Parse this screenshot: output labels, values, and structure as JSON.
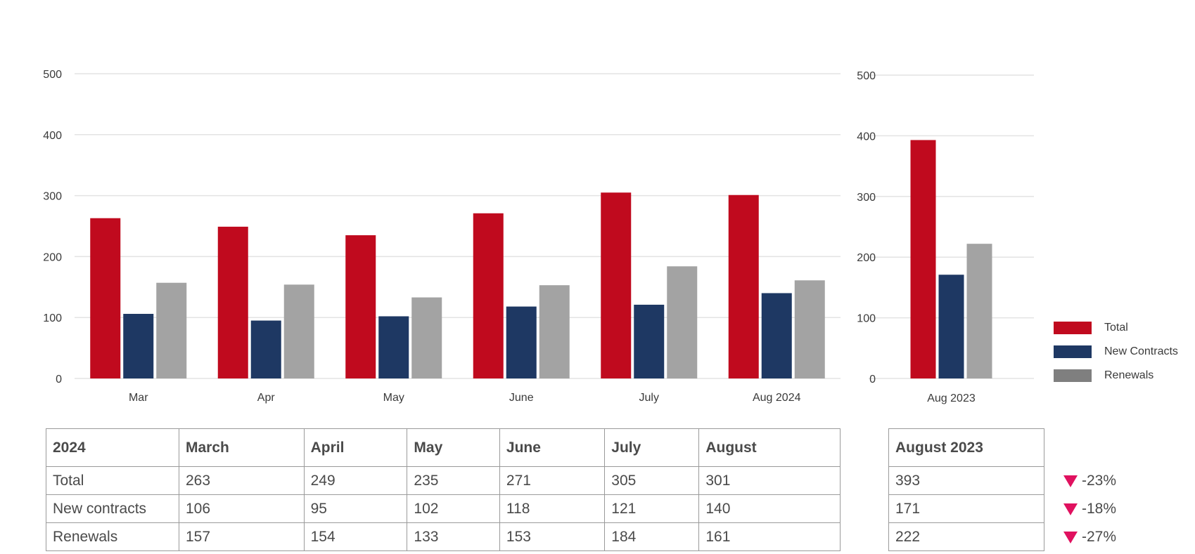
{
  "colors": {
    "total": "#c00a1e",
    "new_contracts": "#1e3863",
    "renewals": "#a3a3a3",
    "legend_renewals": "#7f7f7f",
    "down": "#e0115f"
  },
  "chart_data": [
    {
      "type": "bar",
      "categories": [
        "Mar",
        "Apr",
        "May",
        "June",
        "July",
        "Aug 2024"
      ],
      "series": [
        {
          "name": "Total",
          "values": [
            263,
            249,
            235,
            271,
            305,
            301
          ]
        },
        {
          "name": "New Contracts",
          "values": [
            106,
            95,
            102,
            118,
            121,
            140
          ]
        },
        {
          "name": "Renewals",
          "values": [
            157,
            154,
            133,
            153,
            184,
            161
          ]
        }
      ],
      "yticks": [
        0,
        100,
        200,
        300,
        400,
        500
      ],
      "ylim": [
        0,
        500
      ],
      "grid": true
    },
    {
      "type": "bar",
      "categories": [
        "Aug 2023"
      ],
      "series": [
        {
          "name": "Total",
          "values": [
            393
          ]
        },
        {
          "name": "New Contracts",
          "values": [
            171
          ]
        },
        {
          "name": "Renewals",
          "values": [
            222
          ]
        }
      ],
      "yticks": [
        0,
        100,
        200,
        300,
        400,
        500
      ],
      "ylim": [
        0,
        500
      ],
      "grid": true,
      "legend": "right"
    }
  ],
  "legend": [
    "Total",
    "New Contracts",
    "Renewals"
  ],
  "table": {
    "headers": [
      "2024",
      "March",
      "April",
      "May",
      "June",
      "July",
      "August"
    ],
    "rows": [
      [
        "Total",
        "263",
        "249",
        "235",
        "271",
        "305",
        "301"
      ],
      [
        "New contracts",
        "106",
        "95",
        "102",
        "118",
        "121",
        "140"
      ],
      [
        "Renewals",
        "157",
        "154",
        "133",
        "153",
        "184",
        "161"
      ]
    ]
  },
  "side_table": {
    "header": "August 2023",
    "rows": [
      "393",
      "171",
      "222"
    ]
  },
  "changes": [
    "-23%",
    "-18%",
    "-27%"
  ]
}
